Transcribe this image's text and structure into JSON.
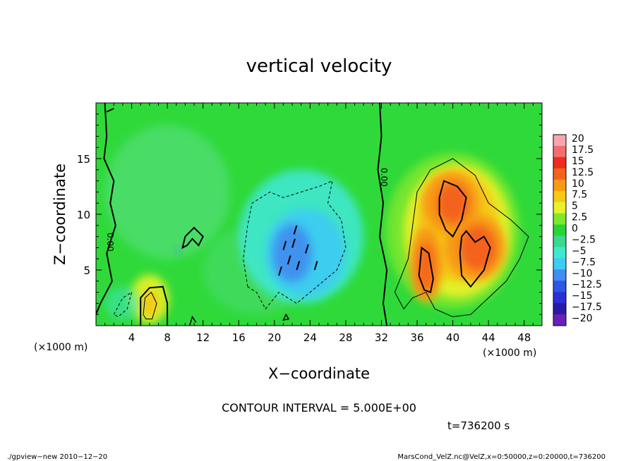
{
  "chart_data": {
    "type": "heatmap",
    "title": "vertical velocity",
    "xlabel": "X−coordinate",
    "ylabel": "Z−coordinate",
    "x_unit_left": "(×1000 m)",
    "x_unit_right": "(×1000 m)",
    "xlim": [
      0,
      50
    ],
    "ylim": [
      0,
      20
    ],
    "xticks": [
      4,
      8,
      12,
      16,
      20,
      24,
      28,
      32,
      36,
      40,
      44,
      48
    ],
    "yticks": [
      5,
      10,
      15
    ],
    "contour_interval_text": "CONTOUR INTERVAL = 5.000E+00",
    "time_text": "t=736200 s",
    "zero_contour_label": "0.00",
    "footer_left": "./gpview−new  2010−12−20",
    "footer_right": "MarsCond_VelZ.nc@VelZ,x=0:50000,z=0:20000,t=736200",
    "colorbar": {
      "labels": [
        "20",
        "17.5",
        "15",
        "12.5",
        "10",
        "7.5",
        "5",
        "2.5",
        "0",
        "−2.5",
        "−5",
        "−7.5",
        "−10",
        "−12.5",
        "−15",
        "−17.5",
        "−20"
      ],
      "colors": [
        "#f7a6b0",
        "#f36f6f",
        "#ee2d1f",
        "#f4621e",
        "#f79a14",
        "#f8c816",
        "#e6f22a",
        "#7fe82e",
        "#2ad435",
        "#3ad98f",
        "#3fe8d0",
        "#3ecbf4",
        "#3f8ff0",
        "#2e55e6",
        "#2a2fd6",
        "#2a1aa8",
        "#6a20b8"
      ]
    },
    "features": [
      {
        "kind": "updraft",
        "x": 40,
        "z": 11,
        "peak": 12.5
      },
      {
        "kind": "updraft",
        "x": 42.5,
        "z": 7,
        "peak": 12.5
      },
      {
        "kind": "updraft",
        "x": 37,
        "z": 5.5,
        "peak": 10
      },
      {
        "kind": "updraft",
        "x": 6,
        "z": 2,
        "peak": 5
      },
      {
        "kind": "downdraft",
        "x": 22,
        "z": 6.5,
        "peak": -10
      }
    ]
  }
}
